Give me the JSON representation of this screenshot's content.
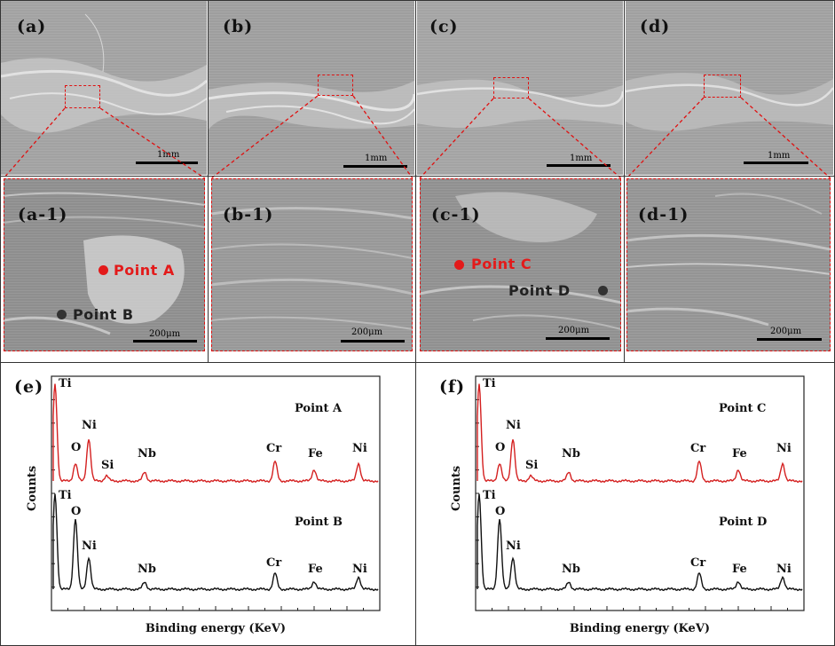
{
  "figure": {
    "panels": [
      {
        "id": "a",
        "label": "(a)",
        "scale": "1mm"
      },
      {
        "id": "b",
        "label": "(b)",
        "scale": "1mm"
      },
      {
        "id": "c",
        "label": "(c)",
        "scale": "1mm"
      },
      {
        "id": "d",
        "label": "(d)",
        "scale": "1mm"
      }
    ],
    "zoom_panels": [
      {
        "id": "a1",
        "label": "(a-1)",
        "scale": "200μm"
      },
      {
        "id": "b1",
        "label": "(b-1)",
        "scale": "200μm"
      },
      {
        "id": "c1",
        "label": "(c-1)",
        "scale": "200μm"
      },
      {
        "id": "d1",
        "label": "(d-1)",
        "scale": "200μm"
      }
    ],
    "points": {
      "a": "Point A",
      "b": "Point B",
      "c": "Point C",
      "d": "Point D"
    },
    "point_colors": {
      "red": "#e31a1a",
      "dark": "#333333"
    },
    "spectra": [
      {
        "id": "e",
        "label": "(e)",
        "ylabel": "Counts",
        "xlabel": "Binding energy (KeV)",
        "top": {
          "name": "Point A",
          "color": "#d42020",
          "peaks": [
            "Ti",
            "O",
            "Ni",
            "Si",
            "Nb",
            "Cr",
            "Fe",
            "Ni"
          ]
        },
        "bottom": {
          "name": "Point B",
          "color": "#111111",
          "peaks": [
            "Ti",
            "O",
            "Ni",
            "Nb",
            "Cr",
            "Fe",
            "Ni"
          ]
        }
      },
      {
        "id": "f",
        "label": "(f)",
        "ylabel": "Counts",
        "xlabel": "Binding energy (KeV)",
        "top": {
          "name": "Point C",
          "color": "#d42020",
          "peaks": [
            "Ti",
            "O",
            "Ni",
            "Si",
            "Nb",
            "Cr",
            "Fe",
            "Ni"
          ]
        },
        "bottom": {
          "name": "Point D",
          "color": "#111111",
          "peaks": [
            "Ti",
            "O",
            "Ni",
            "Nb",
            "Cr",
            "Fe",
            "Ni"
          ]
        }
      }
    ]
  }
}
